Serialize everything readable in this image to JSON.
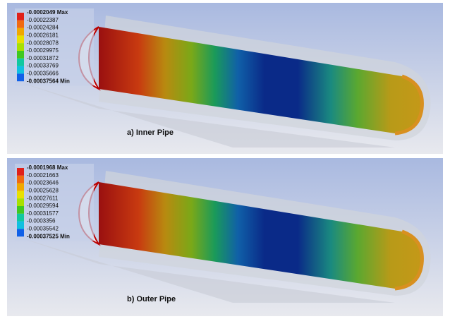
{
  "panels": [
    {
      "caption": "a) Inner Pipe",
      "legend": {
        "labels": [
          "-0.0002049 Max",
          "-0.00022387",
          "-0.00024284",
          "-0.00026181",
          "-0.00028078",
          "-0.00029975",
          "-0.00031872",
          "-0.00033769",
          "-0.00035666",
          "-0.00037564 Min"
        ],
        "colors": [
          "#e0201a",
          "#f06a10",
          "#f0a800",
          "#e8e000",
          "#a8e000",
          "#40c820",
          "#10c8a0",
          "#10c0e0",
          "#1060e8"
        ]
      }
    },
    {
      "caption": "b) Outer Pipe",
      "legend": {
        "labels": [
          "-0.0001968 Max",
          "-0.00021663",
          "-0.00023646",
          "-0.00025628",
          "-0.00027611",
          "-0.00029594",
          "-0.00031577",
          "-0.0003356",
          "-0.00035542",
          "-0.00037525 Min"
        ],
        "colors": [
          "#e0201a",
          "#f06a10",
          "#f0a800",
          "#e8e000",
          "#a8e000",
          "#40c820",
          "#10c8a0",
          "#10c0e0",
          "#1060e8"
        ]
      }
    }
  ]
}
